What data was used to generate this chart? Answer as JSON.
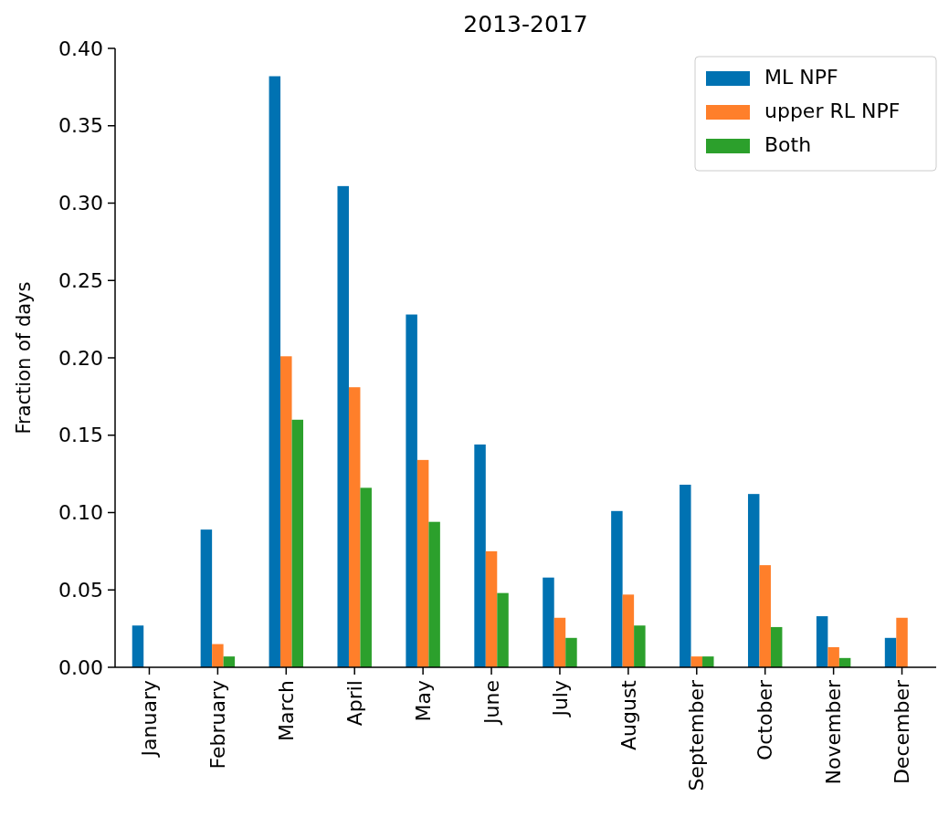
{
  "chart_data": {
    "type": "bar",
    "title": "2013-2017",
    "ylabel": "Fraction of days",
    "categories": [
      "January",
      "February",
      "March",
      "April",
      "May",
      "June",
      "July",
      "August",
      "September",
      "October",
      "November",
      "December"
    ],
    "series": [
      {
        "name": "ML NPF",
        "color": "#0072b2",
        "values": [
          0.027,
          0.089,
          0.382,
          0.311,
          0.228,
          0.144,
          0.058,
          0.101,
          0.118,
          0.112,
          0.033,
          0.019
        ]
      },
      {
        "name": "upper RL NPF",
        "color": "#ff7f2a",
        "values": [
          0,
          0.015,
          0.201,
          0.181,
          0.134,
          0.075,
          0.032,
          0.047,
          0.007,
          0.066,
          0.013,
          0.032
        ]
      },
      {
        "name": "Both",
        "color": "#2ca02c",
        "values": [
          0,
          0.007,
          0.16,
          0.116,
          0.094,
          0.048,
          0.019,
          0.027,
          0.007,
          0.026,
          0.006,
          0
        ]
      }
    ],
    "ylim": [
      0,
      0.4
    ],
    "yticks": [
      {
        "value": 0,
        "label": "0.00"
      },
      {
        "value": 0.05,
        "label": "0.05"
      },
      {
        "value": 0.1,
        "label": "0.10"
      },
      {
        "value": 0.15,
        "label": "0.15"
      },
      {
        "value": 0.2,
        "label": "0.20"
      },
      {
        "value": 0.25,
        "label": "0.25"
      },
      {
        "value": 0.3,
        "label": "0.30"
      },
      {
        "value": 0.35,
        "label": "0.35"
      },
      {
        "value": 0.4,
        "label": "0.40"
      }
    ],
    "grid": false,
    "legend": "top right"
  }
}
